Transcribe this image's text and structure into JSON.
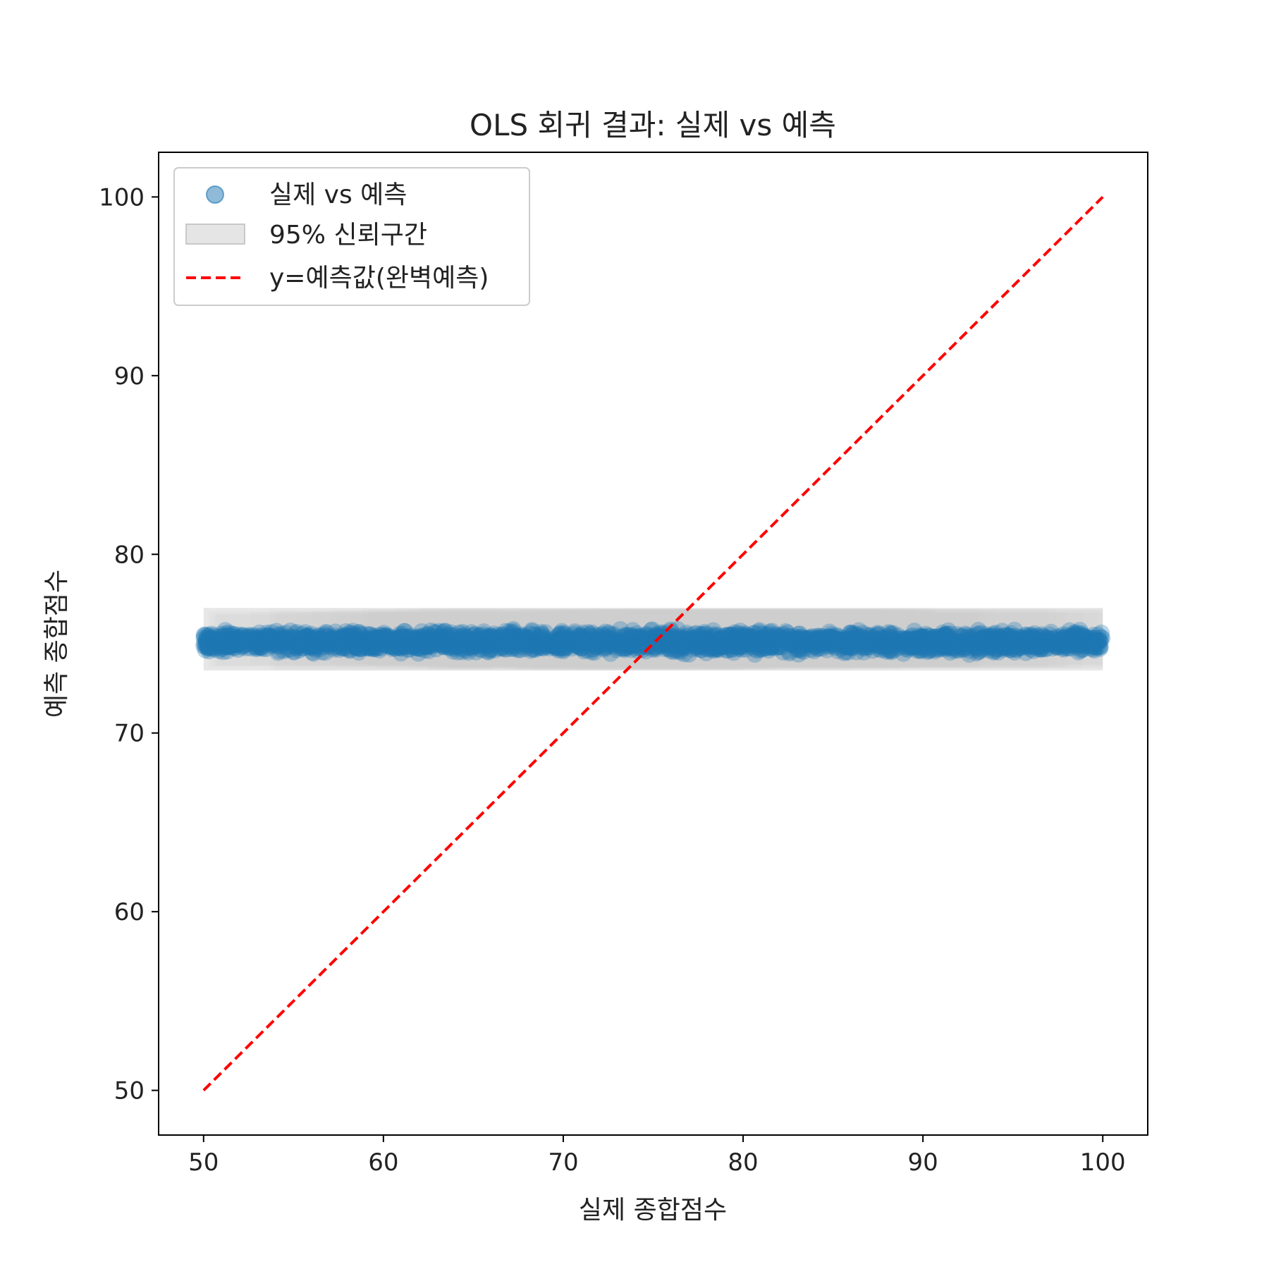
{
  "chart_data": {
    "type": "scatter",
    "title": "OLS 회귀 결과: 실제 vs 예측",
    "xlabel": "실제 종합점수",
    "ylabel": "예측 종합점수",
    "xlim": [
      47.5,
      102.5
    ],
    "ylim": [
      47.5,
      102.5
    ],
    "xticks": [
      50,
      60,
      70,
      80,
      90,
      100
    ],
    "yticks": [
      50,
      60,
      70,
      80,
      90,
      100
    ],
    "grid": false,
    "legend_position": "upper-left",
    "series": [
      {
        "name": "실제 vs 예측",
        "kind": "scatter",
        "color": "#1f77b4",
        "alpha": 0.5,
        "x_range": [
          50,
          100
        ],
        "y_center": 75.0,
        "y_spread": [
          74.3,
          75.9
        ]
      },
      {
        "name": "95% 신뢰구간",
        "kind": "band",
        "color": "#d3d3d3",
        "x_range": [
          50,
          100
        ],
        "lower": 73.5,
        "upper": 77.0
      },
      {
        "name": "y=예측값(완벽예측)",
        "kind": "line",
        "style": "dashed",
        "color": "#ff0000",
        "x": [
          50,
          100
        ],
        "y": [
          50,
          100
        ]
      }
    ]
  }
}
